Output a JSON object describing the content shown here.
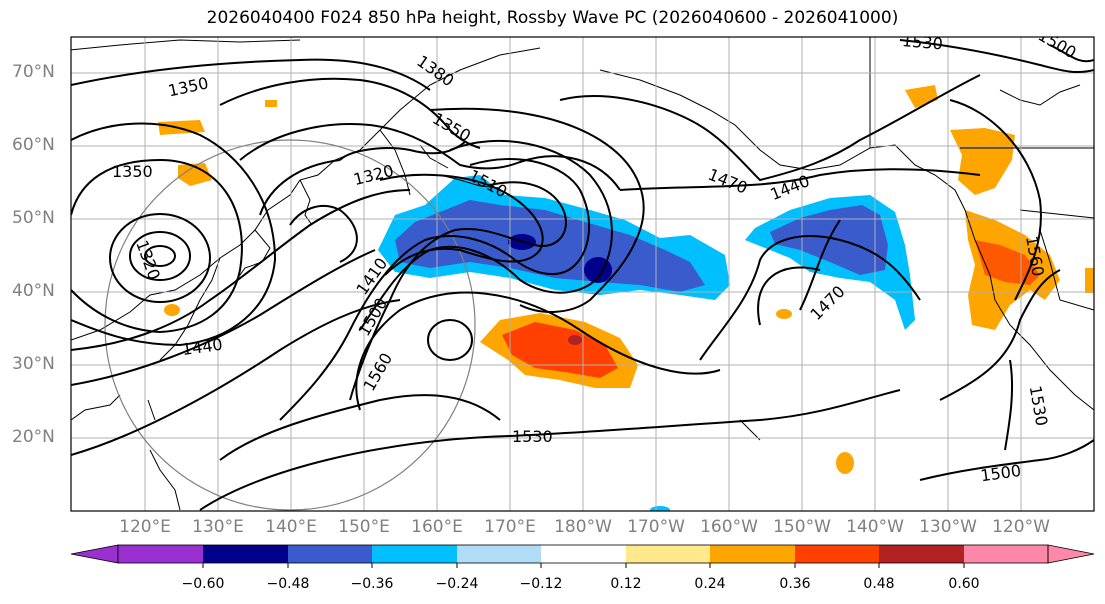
{
  "title": "2026040400 F024 850 hPa height, Rossby Wave PC (2026040600 - 2026041000)",
  "lat_labels": [
    "70°N",
    "60°N",
    "50°N",
    "40°N",
    "30°N",
    "20°N"
  ],
  "lon_labels": [
    "120°E",
    "130°E",
    "140°E",
    "150°E",
    "160°E",
    "170°E",
    "180°W",
    "170°W",
    "160°W",
    "150°W",
    "140°W",
    "130°W",
    "120°W"
  ],
  "contour_labels": [
    "1350",
    "1380",
    "1350",
    "1320",
    "1350",
    "1320",
    "1410",
    "1500",
    "1560",
    "1440",
    "1510",
    "1470",
    "1440",
    "1470",
    "1530",
    "1500",
    "1530",
    "1500",
    "1560",
    "1530"
  ],
  "colorbar": {
    "ticks": [
      "−0.60",
      "−0.48",
      "−0.36",
      "−0.24",
      "−0.12",
      "0.12",
      "0.24",
      "0.36",
      "0.48",
      "0.60"
    ],
    "colors": [
      "#9b30d0",
      "#00008b",
      "#3a5bcc",
      "#00bfff",
      "#b0dcf8",
      "#ffffff",
      "#ffe98a",
      "#ffa500",
      "#ff4000",
      "#b22222",
      "#ff88aa"
    ]
  }
}
